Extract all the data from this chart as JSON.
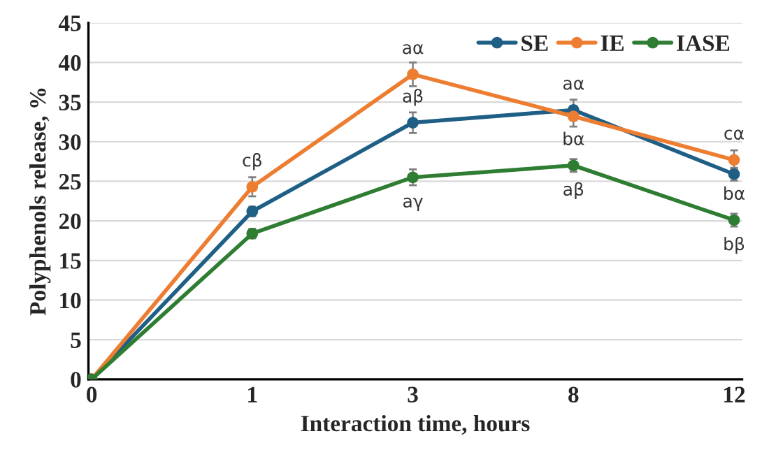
{
  "chart_data": {
    "type": "line",
    "xlabel": "Interaction time, hours",
    "ylabel": "Polyphenols release, %",
    "categories": [
      "0",
      "1",
      "3",
      "8",
      "12"
    ],
    "series": [
      {
        "name": "SE",
        "color": "#1f5f86",
        "values": [
          0,
          21.2,
          32.4,
          34.0,
          25.9
        ],
        "errors": [
          0,
          0.6,
          1.3,
          1.3,
          0.8
        ]
      },
      {
        "name": "IE",
        "color": "#ed7d31",
        "values": [
          0,
          24.3,
          38.5,
          33.2,
          27.7
        ],
        "errors": [
          0,
          1.2,
          1.5,
          1.3,
          1.2
        ]
      },
      {
        "name": "IASE",
        "color": "#2e7d32",
        "values": [
          0,
          18.4,
          25.5,
          27.0,
          20.1
        ],
        "errors": [
          0,
          0.6,
          1.0,
          0.8,
          0.8
        ]
      }
    ],
    "ylim": [
      0,
      45
    ],
    "yticks": [
      0,
      5,
      10,
      15,
      20,
      25,
      30,
      35,
      40,
      45
    ],
    "grid": "y",
    "legend": "top right",
    "marker": "circle",
    "line_style": "solid",
    "annotations": [
      {
        "text": "cβ",
        "x": "1",
        "y": 24.3
      },
      {
        "text": "aα",
        "x": "3",
        "y": 38.5
      },
      {
        "text": "aβ",
        "x": "3",
        "y": 32.4
      },
      {
        "text": "aγ",
        "x": "3",
        "y": 25.5
      },
      {
        "text": "aα",
        "x": "8",
        "y": 34.0
      },
      {
        "text": "bα",
        "x": "8",
        "y": 27.0
      },
      {
        "text": "aβ",
        "x": "8",
        "y": 27.0
      },
      {
        "text": "cα",
        "x": "12",
        "y": 27.7
      },
      {
        "text": "bα",
        "x": "12",
        "y": 20.1
      },
      {
        "text": "bβ",
        "x": "12",
        "y": 20.1
      }
    ]
  }
}
